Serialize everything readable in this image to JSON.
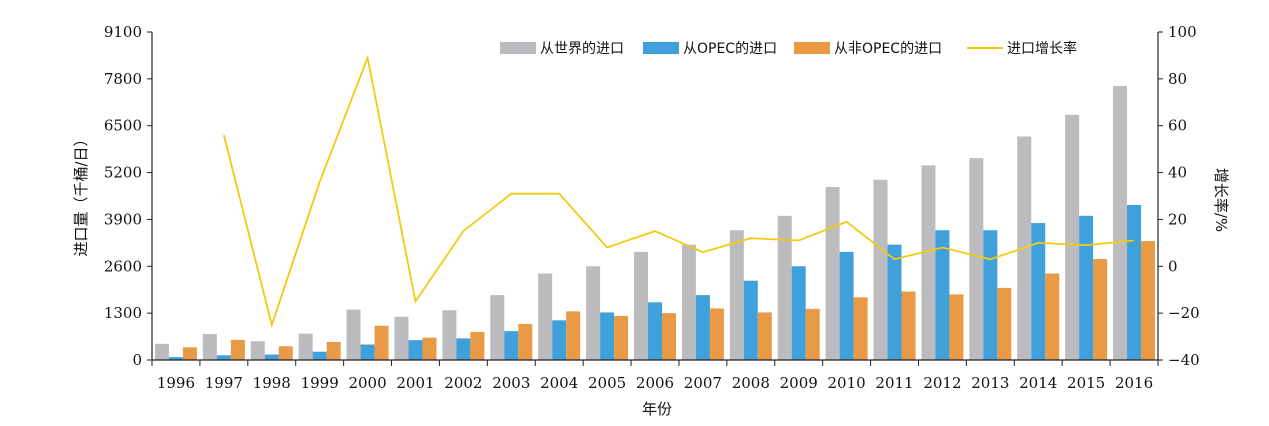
{
  "chart_data": {
    "type": "bar",
    "categories": [
      "1996",
      "1997",
      "1998",
      "1999",
      "2000",
      "2001",
      "2002",
      "2003",
      "2004",
      "2005",
      "2006",
      "2007",
      "2008",
      "2009",
      "2010",
      "2011",
      "2012",
      "2013",
      "2014",
      "2015",
      "2016"
    ],
    "series": [
      {
        "name": "从世界的进口",
        "type": "bar",
        "axis": "left",
        "color": "#bcbcc0",
        "values": [
          450,
          720,
          520,
          730,
          1400,
          1200,
          1380,
          1800,
          2400,
          2600,
          3000,
          3200,
          3600,
          4000,
          4800,
          5000,
          5400,
          5600,
          6200,
          6800,
          7600
        ]
      },
      {
        "name": "从OPEC的进口",
        "type": "bar",
        "axis": "left",
        "color": "#3fa0db",
        "values": [
          80,
          130,
          150,
          230,
          430,
          550,
          600,
          800,
          1100,
          1320,
          1600,
          1800,
          2200,
          2600,
          3000,
          3200,
          3600,
          3600,
          3800,
          4000,
          4300
        ]
      },
      {
        "name": "从非OPEC的进口",
        "type": "bar",
        "axis": "left",
        "color": "#e99a44",
        "values": [
          350,
          560,
          380,
          500,
          950,
          620,
          780,
          1000,
          1350,
          1220,
          1300,
          1430,
          1320,
          1420,
          1740,
          1900,
          1820,
          2000,
          2400,
          2800,
          3300
        ]
      },
      {
        "name": "进口增长率",
        "type": "line",
        "axis": "right",
        "color": "#f2cb10",
        "values": [
          null,
          56,
          -25,
          36,
          89,
          -15,
          15,
          31,
          31,
          8,
          15,
          6,
          12,
          11,
          19,
          3,
          8,
          3,
          10,
          9,
          11
        ]
      }
    ],
    "xlabel": "年份",
    "ylabel": "进口量（千桶/日）",
    "y2label": "增长率/%",
    "ylim": [
      0,
      9100
    ],
    "yticks": [
      "0",
      "1300",
      "2600",
      "3900",
      "5200",
      "6500",
      "7800",
      "9100"
    ],
    "y2lim": [
      -40,
      100
    ],
    "y2ticks": [
      "−40",
      "−20",
      "0",
      "20",
      "40",
      "60",
      "80",
      "100"
    ],
    "legend_position": "top-right",
    "grid": false
  }
}
